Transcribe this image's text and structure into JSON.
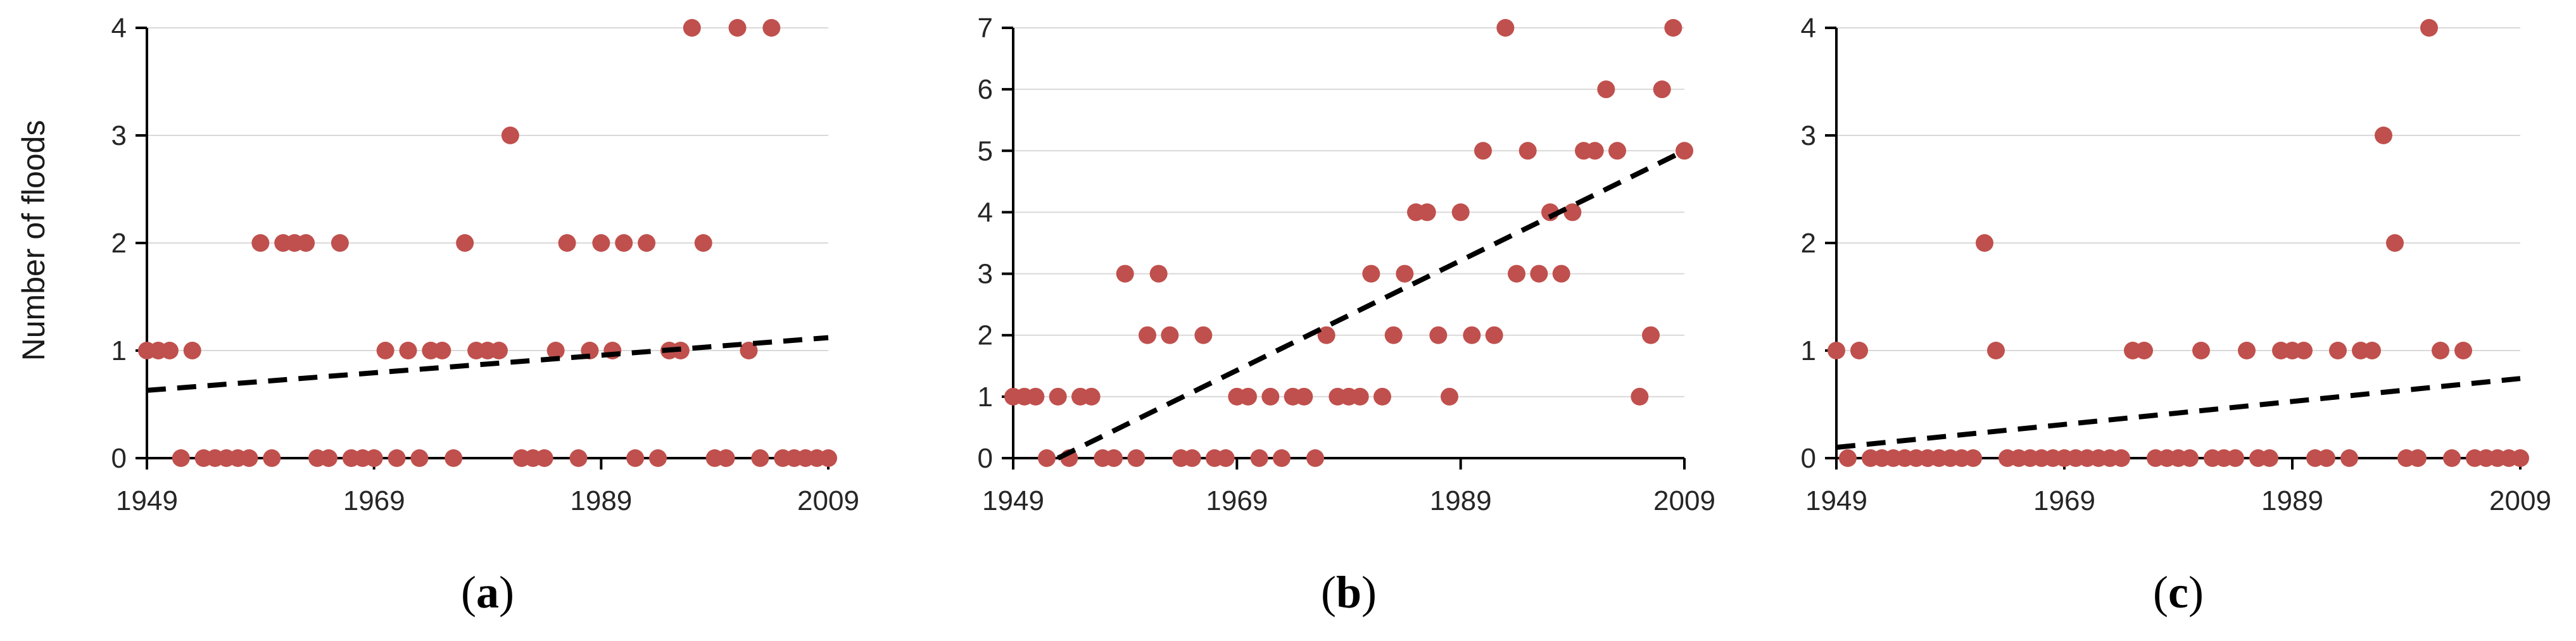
{
  "y_axis_label": "Number of floods",
  "colors": {
    "point": "#c0504d",
    "trend": "#000000",
    "grid": "#d9d9d9",
    "axis": "#000000"
  },
  "chart_data": [
    {
      "type": "scatter",
      "panel_label": "a",
      "x_ticks": [
        1949,
        1969,
        1989,
        2009
      ],
      "y_ticks": [
        0,
        1,
        2,
        3,
        4
      ],
      "xlim": [
        1949,
        2009
      ],
      "ylim": [
        0,
        4
      ],
      "grid": true,
      "points": [
        [
          1949,
          1
        ],
        [
          1950,
          1
        ],
        [
          1951,
          1
        ],
        [
          1952,
          0
        ],
        [
          1953,
          1
        ],
        [
          1954,
          0
        ],
        [
          1955,
          0
        ],
        [
          1956,
          0
        ],
        [
          1957,
          0
        ],
        [
          1958,
          0
        ],
        [
          1959,
          2
        ],
        [
          1960,
          0
        ],
        [
          1961,
          2
        ],
        [
          1962,
          2
        ],
        [
          1963,
          2
        ],
        [
          1964,
          0
        ],
        [
          1965,
          0
        ],
        [
          1966,
          2
        ],
        [
          1967,
          0
        ],
        [
          1968,
          0
        ],
        [
          1969,
          0
        ],
        [
          1970,
          1
        ],
        [
          1971,
          0
        ],
        [
          1972,
          1
        ],
        [
          1973,
          0
        ],
        [
          1974,
          1
        ],
        [
          1975,
          1
        ],
        [
          1976,
          0
        ],
        [
          1977,
          2
        ],
        [
          1978,
          1
        ],
        [
          1979,
          1
        ],
        [
          1980,
          1
        ],
        [
          1981,
          3
        ],
        [
          1982,
          0
        ],
        [
          1983,
          0
        ],
        [
          1984,
          0
        ],
        [
          1985,
          1
        ],
        [
          1986,
          2
        ],
        [
          1987,
          0
        ],
        [
          1988,
          1
        ],
        [
          1989,
          2
        ],
        [
          1990,
          1
        ],
        [
          1991,
          2
        ],
        [
          1992,
          0
        ],
        [
          1993,
          2
        ],
        [
          1994,
          0
        ],
        [
          1995,
          1
        ],
        [
          1996,
          1
        ],
        [
          1997,
          4
        ],
        [
          1998,
          2
        ],
        [
          1999,
          0
        ],
        [
          2000,
          0
        ],
        [
          2001,
          4
        ],
        [
          2002,
          1
        ],
        [
          2003,
          0
        ],
        [
          2004,
          4
        ],
        [
          2005,
          0
        ],
        [
          2006,
          0
        ],
        [
          2007,
          0
        ],
        [
          2008,
          0
        ],
        [
          2009,
          0
        ]
      ],
      "trend": {
        "x": [
          1949,
          2009
        ],
        "y": [
          0.63,
          1.12
        ]
      }
    },
    {
      "type": "scatter",
      "panel_label": "b",
      "x_ticks": [
        1949,
        1969,
        1989,
        2009
      ],
      "y_ticks": [
        0,
        1,
        2,
        3,
        4,
        5,
        6,
        7
      ],
      "xlim": [
        1949,
        2009
      ],
      "ylim": [
        0,
        7
      ],
      "grid": true,
      "points": [
        [
          1949,
          1
        ],
        [
          1950,
          1
        ],
        [
          1951,
          1
        ],
        [
          1952,
          0
        ],
        [
          1953,
          1
        ],
        [
          1954,
          0
        ],
        [
          1955,
          1
        ],
        [
          1956,
          1
        ],
        [
          1957,
          0
        ],
        [
          1958,
          0
        ],
        [
          1959,
          3
        ],
        [
          1960,
          0
        ],
        [
          1961,
          2
        ],
        [
          1962,
          3
        ],
        [
          1963,
          2
        ],
        [
          1964,
          0
        ],
        [
          1965,
          0
        ],
        [
          1966,
          2
        ],
        [
          1967,
          0
        ],
        [
          1968,
          0
        ],
        [
          1969,
          1
        ],
        [
          1970,
          1
        ],
        [
          1971,
          0
        ],
        [
          1972,
          1
        ],
        [
          1973,
          0
        ],
        [
          1974,
          1
        ],
        [
          1975,
          1
        ],
        [
          1976,
          0
        ],
        [
          1977,
          2
        ],
        [
          1978,
          1
        ],
        [
          1979,
          1
        ],
        [
          1980,
          1
        ],
        [
          1981,
          3
        ],
        [
          1982,
          1
        ],
        [
          1983,
          2
        ],
        [
          1984,
          3
        ],
        [
          1985,
          4
        ],
        [
          1986,
          4
        ],
        [
          1987,
          2
        ],
        [
          1988,
          1
        ],
        [
          1989,
          4
        ],
        [
          1990,
          2
        ],
        [
          1991,
          5
        ],
        [
          1992,
          2
        ],
        [
          1993,
          7
        ],
        [
          1994,
          3
        ],
        [
          1995,
          5
        ],
        [
          1996,
          3
        ],
        [
          1997,
          4
        ],
        [
          1998,
          3
        ],
        [
          1999,
          4
        ],
        [
          2000,
          5
        ],
        [
          2001,
          5
        ],
        [
          2002,
          6
        ],
        [
          2003,
          5
        ],
        [
          2005,
          1
        ],
        [
          2006,
          2
        ],
        [
          2007,
          6
        ],
        [
          2008,
          7
        ],
        [
          2009,
          5
        ]
      ],
      "trend": {
        "x": [
          1953,
          2009
        ],
        "y": [
          0,
          5
        ]
      }
    },
    {
      "type": "scatter",
      "panel_label": "c",
      "x_ticks": [
        1949,
        1969,
        1989,
        2009
      ],
      "y_ticks": [
        0,
        1,
        2,
        3,
        4
      ],
      "xlim": [
        1949,
        2009
      ],
      "ylim": [
        0,
        4
      ],
      "grid": true,
      "points": [
        [
          1949,
          1
        ],
        [
          1950,
          0
        ],
        [
          1951,
          1
        ],
        [
          1952,
          0
        ],
        [
          1953,
          0
        ],
        [
          1954,
          0
        ],
        [
          1955,
          0
        ],
        [
          1956,
          0
        ],
        [
          1957,
          0
        ],
        [
          1958,
          0
        ],
        [
          1959,
          0
        ],
        [
          1960,
          0
        ],
        [
          1961,
          0
        ],
        [
          1962,
          2
        ],
        [
          1963,
          1
        ],
        [
          1964,
          0
        ],
        [
          1965,
          0
        ],
        [
          1966,
          0
        ],
        [
          1967,
          0
        ],
        [
          1968,
          0
        ],
        [
          1969,
          0
        ],
        [
          1970,
          0
        ],
        [
          1971,
          0
        ],
        [
          1972,
          0
        ],
        [
          1973,
          0
        ],
        [
          1974,
          0
        ],
        [
          1975,
          1
        ],
        [
          1976,
          1
        ],
        [
          1977,
          0
        ],
        [
          1978,
          0
        ],
        [
          1979,
          0
        ],
        [
          1980,
          0
        ],
        [
          1981,
          1
        ],
        [
          1982,
          0
        ],
        [
          1983,
          0
        ],
        [
          1984,
          0
        ],
        [
          1985,
          1
        ],
        [
          1986,
          0
        ],
        [
          1987,
          0
        ],
        [
          1988,
          1
        ],
        [
          1989,
          1
        ],
        [
          1990,
          1
        ],
        [
          1991,
          0
        ],
        [
          1992,
          0
        ],
        [
          1993,
          1
        ],
        [
          1994,
          0
        ],
        [
          1995,
          1
        ],
        [
          1996,
          1
        ],
        [
          1997,
          3
        ],
        [
          1998,
          2
        ],
        [
          1999,
          0
        ],
        [
          2000,
          0
        ],
        [
          2001,
          4
        ],
        [
          2002,
          1
        ],
        [
          2003,
          0
        ],
        [
          2004,
          1
        ],
        [
          2005,
          0
        ],
        [
          2006,
          0
        ],
        [
          2007,
          0
        ],
        [
          2008,
          0
        ],
        [
          2009,
          0
        ]
      ],
      "trend": {
        "x": [
          1949,
          2009
        ],
        "y": [
          0.1,
          0.74
        ]
      }
    }
  ]
}
